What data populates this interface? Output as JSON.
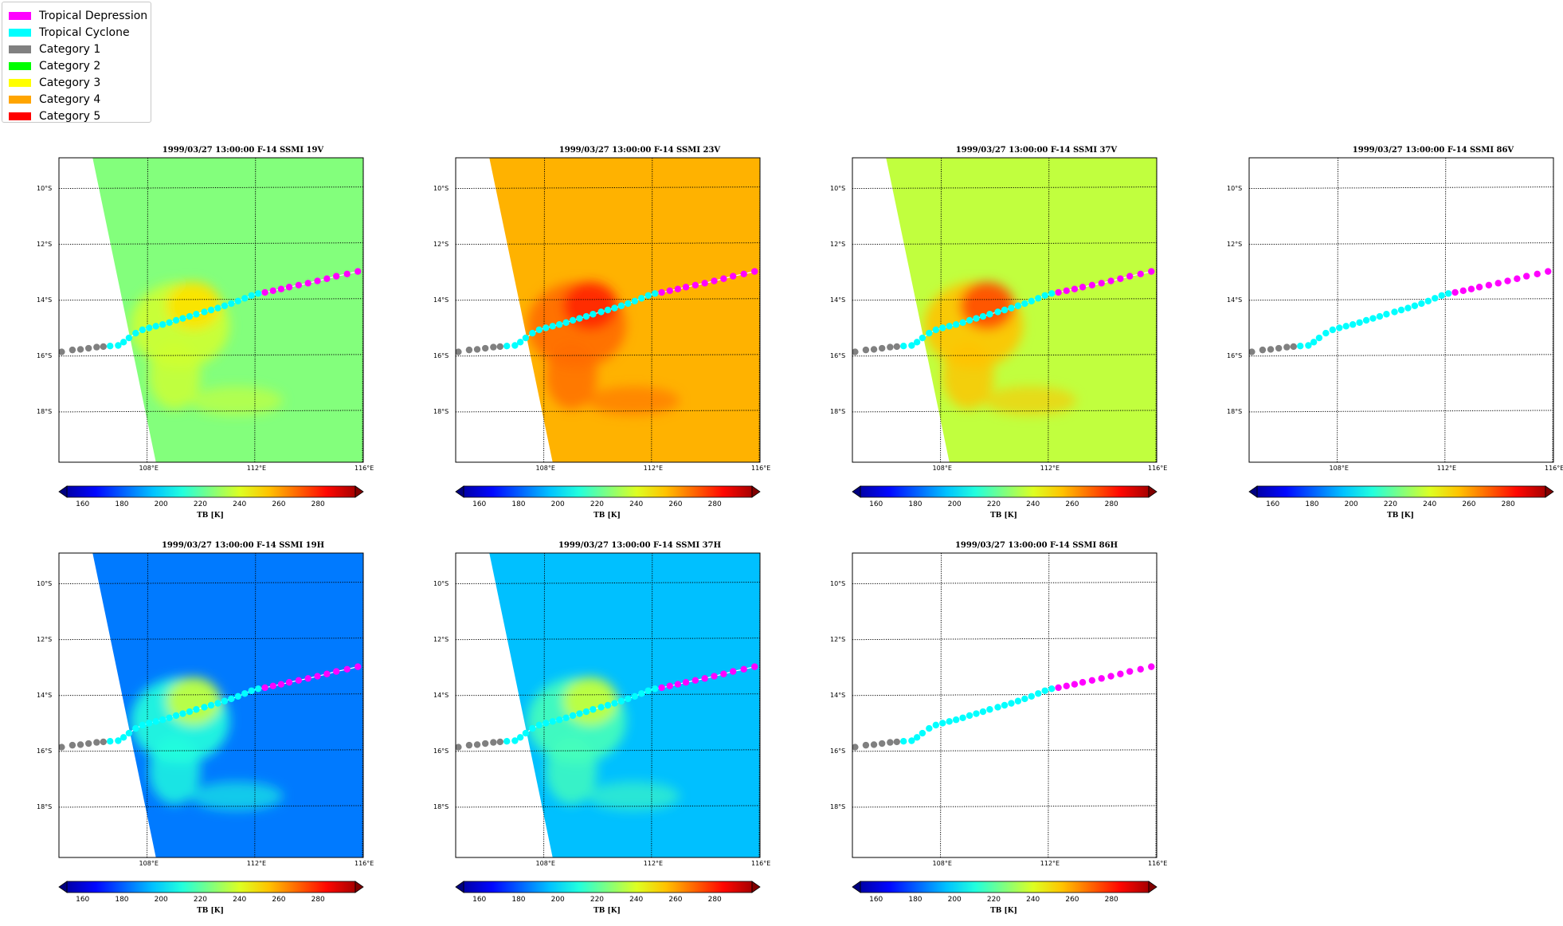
{
  "legend": {
    "items": [
      {
        "label": "Tropical Depression",
        "color": "#ff00ff"
      },
      {
        "label": "Tropical Cyclone",
        "color": "#00ffff"
      },
      {
        "label": "Category 1",
        "color": "#808080"
      },
      {
        "label": "Category 2",
        "color": "#00ff00"
      },
      {
        "label": "Category 3",
        "color": "#ffff00"
      },
      {
        "label": "Category 4",
        "color": "#ffa500"
      },
      {
        "label": "Category 5",
        "color": "#ff0000"
      }
    ]
  },
  "panels": [
    {
      "title": "1999/03/27 13:00:00  F-14 SSMI 19V",
      "has_data": true,
      "bg_tb": 226
    },
    {
      "title": "1999/03/27 13:00:00  F-14 SSMI 23V",
      "has_data": true,
      "bg_tb": 255
    },
    {
      "title": "1999/03/27 13:00:00  F-14 SSMI 37V",
      "has_data": true,
      "bg_tb": 235
    },
    {
      "title": "1999/03/27 13:00:00  F-14 SSMI 86V",
      "has_data": false
    },
    {
      "title": "1999/03/27 13:00:00  F-14 SSMI 19H",
      "has_data": true,
      "bg_tb": 188
    },
    {
      "title": "1999/03/27 13:00:00  F-14 SSMI 37H",
      "has_data": true,
      "bg_tb": 198
    },
    {
      "title": "1999/03/27 13:00:00  F-14 SSMI 86H",
      "has_data": false
    }
  ],
  "map_axes": {
    "lat_labels": [
      "10°S",
      "12°S",
      "14°S",
      "16°S",
      "18°S"
    ],
    "lon_labels": [
      "108°E",
      "112°E",
      "116°E"
    ]
  },
  "colorbar": {
    "label": "TB [K]",
    "ticks": [
      "160",
      "180",
      "200",
      "220",
      "240",
      "260",
      "280"
    ],
    "range": [
      152,
      299
    ],
    "colormap": "jet"
  },
  "chart_data": {
    "type": "scatter",
    "xlabel": "",
    "ylabel": "",
    "xlim": [
      104.7,
      116
    ],
    "ylim": [
      -19.8,
      -8.9
    ],
    "track": [
      {
        "lon": 104.8,
        "lat": -15.85,
        "cat": "Category 1"
      },
      {
        "lon": 105.2,
        "lat": -15.78,
        "cat": "Category 1"
      },
      {
        "lon": 105.5,
        "lat": -15.76,
        "cat": "Category 1"
      },
      {
        "lon": 105.8,
        "lat": -15.72,
        "cat": "Category 1"
      },
      {
        "lon": 106.1,
        "lat": -15.68,
        "cat": "Category 1"
      },
      {
        "lon": 106.35,
        "lat": -15.66,
        "cat": "Category 1"
      },
      {
        "lon": 106.6,
        "lat": -15.64,
        "cat": "Tropical Cyclone"
      },
      {
        "lon": 106.9,
        "lat": -15.62,
        "cat": "Tropical Cyclone"
      },
      {
        "lon": 107.1,
        "lat": -15.5,
        "cat": "Tropical Cyclone"
      },
      {
        "lon": 107.3,
        "lat": -15.35,
        "cat": "Tropical Cyclone"
      },
      {
        "lon": 107.55,
        "lat": -15.18,
        "cat": "Tropical Cyclone"
      },
      {
        "lon": 107.8,
        "lat": -15.06,
        "cat": "Tropical Cyclone"
      },
      {
        "lon": 108.05,
        "lat": -14.99,
        "cat": "Tropical Cyclone"
      },
      {
        "lon": 108.3,
        "lat": -14.93,
        "cat": "Tropical Cyclone"
      },
      {
        "lon": 108.55,
        "lat": -14.87,
        "cat": "Tropical Cyclone"
      },
      {
        "lon": 108.8,
        "lat": -14.8,
        "cat": "Tropical Cyclone"
      },
      {
        "lon": 109.05,
        "lat": -14.72,
        "cat": "Tropical Cyclone"
      },
      {
        "lon": 109.3,
        "lat": -14.65,
        "cat": "Tropical Cyclone"
      },
      {
        "lon": 109.55,
        "lat": -14.58,
        "cat": "Tropical Cyclone"
      },
      {
        "lon": 109.8,
        "lat": -14.5,
        "cat": "Tropical Cyclone"
      },
      {
        "lon": 110.1,
        "lat": -14.42,
        "cat": "Tropical Cyclone"
      },
      {
        "lon": 110.35,
        "lat": -14.35,
        "cat": "Tropical Cyclone"
      },
      {
        "lon": 110.6,
        "lat": -14.28,
        "cat": "Tropical Cyclone"
      },
      {
        "lon": 110.85,
        "lat": -14.2,
        "cat": "Tropical Cyclone"
      },
      {
        "lon": 111.1,
        "lat": -14.12,
        "cat": "Tropical Cyclone"
      },
      {
        "lon": 111.35,
        "lat": -14.03,
        "cat": "Tropical Cyclone"
      },
      {
        "lon": 111.6,
        "lat": -13.93,
        "cat": "Tropical Cyclone"
      },
      {
        "lon": 111.85,
        "lat": -13.83,
        "cat": "Tropical Cyclone"
      },
      {
        "lon": 112.1,
        "lat": -13.76,
        "cat": "Tropical Cyclone"
      },
      {
        "lon": 112.35,
        "lat": -13.72,
        "cat": "Tropical Depression"
      },
      {
        "lon": 112.65,
        "lat": -13.66,
        "cat": "Tropical Depression"
      },
      {
        "lon": 112.95,
        "lat": -13.6,
        "cat": "Tropical Depression"
      },
      {
        "lon": 113.25,
        "lat": -13.53,
        "cat": "Tropical Depression"
      },
      {
        "lon": 113.6,
        "lat": -13.46,
        "cat": "Tropical Depression"
      },
      {
        "lon": 113.95,
        "lat": -13.39,
        "cat": "Tropical Depression"
      },
      {
        "lon": 114.3,
        "lat": -13.31,
        "cat": "Tropical Depression"
      },
      {
        "lon": 114.65,
        "lat": -13.23,
        "cat": "Tropical Depression"
      },
      {
        "lon": 115.0,
        "lat": -13.14,
        "cat": "Tropical Depression"
      },
      {
        "lon": 115.4,
        "lat": -13.06,
        "cat": "Tropical Depression"
      },
      {
        "lon": 115.8,
        "lat": -12.97,
        "cat": "Tropical Depression"
      }
    ]
  }
}
